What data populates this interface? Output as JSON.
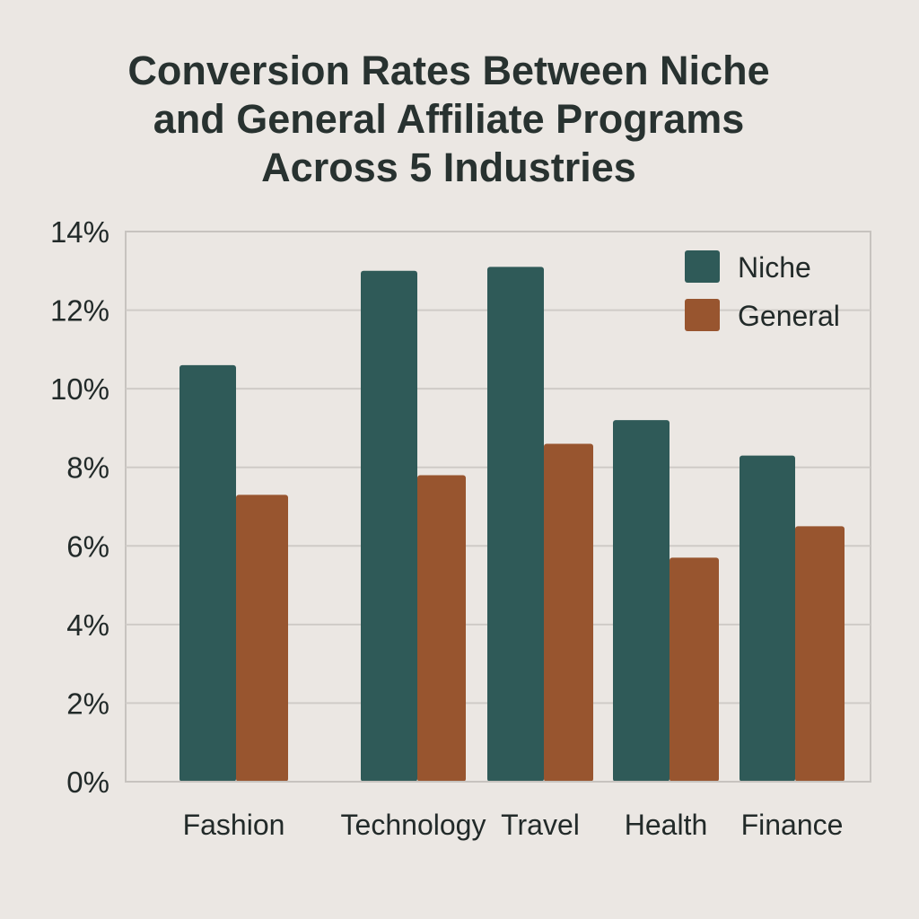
{
  "chart_data": {
    "type": "bar",
    "title": [
      "Conversion Rates Between Niche",
      "and General Affiliate Programs",
      "Across 5 Industries"
    ],
    "categories": [
      "Fashion",
      "Technology",
      "Travel",
      "Health",
      "Finance"
    ],
    "series": [
      {
        "name": "Niche",
        "color": "#2f5a58",
        "values": [
          10.6,
          13.0,
          13.1,
          9.2,
          8.3
        ]
      },
      {
        "name": "General",
        "color": "#98552f",
        "values": [
          7.3,
          7.8,
          8.6,
          5.7,
          6.5
        ]
      }
    ],
    "ylim": [
      0,
      14
    ],
    "yticks": [
      "0%",
      "2%",
      "4%",
      "6%",
      "8%",
      "10%",
      "12%",
      "14%"
    ],
    "ytick_values": [
      0,
      2,
      4,
      6,
      8,
      10,
      12,
      14
    ],
    "grid": true,
    "legend_position": "top-right",
    "xlabel": "",
    "ylabel": ""
  }
}
